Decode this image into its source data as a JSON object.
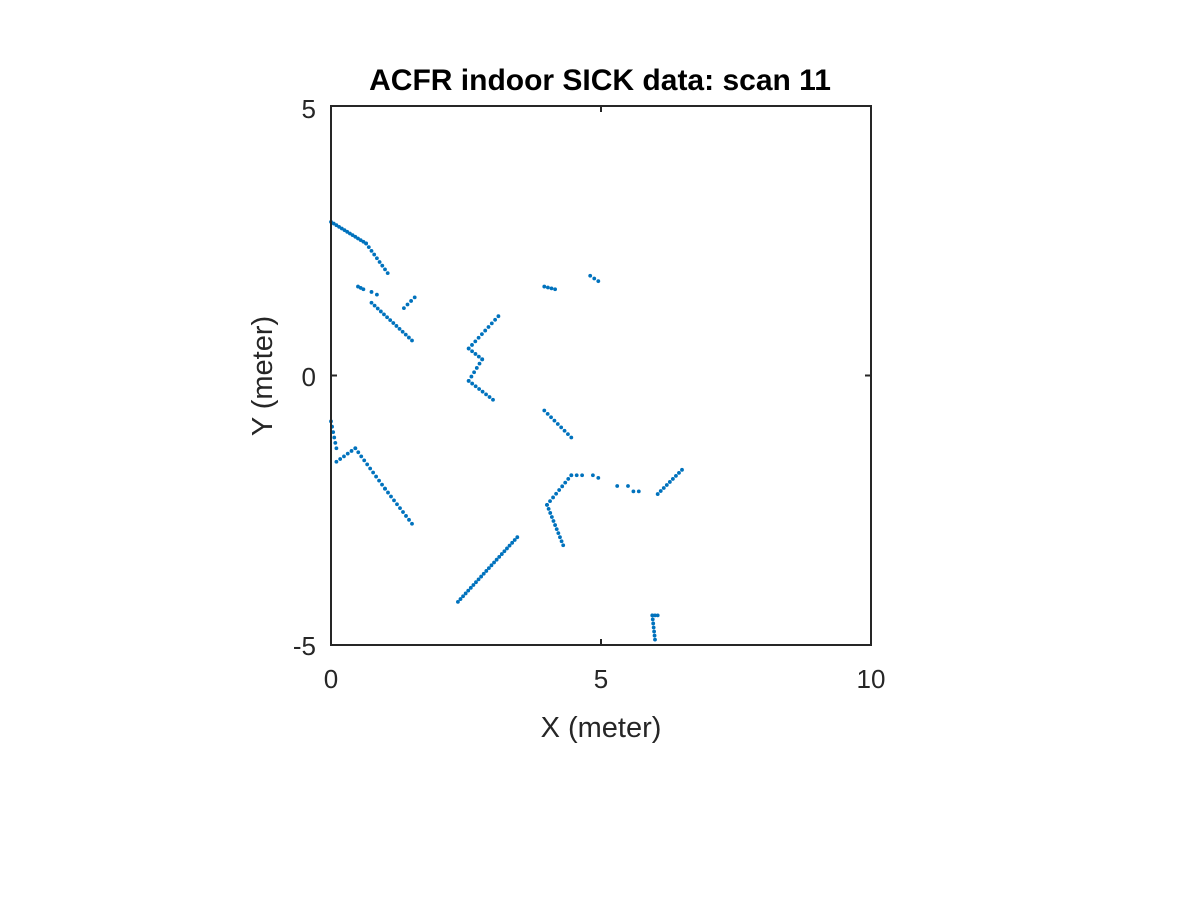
{
  "chart_data": {
    "type": "scatter",
    "title": "ACFR indoor SICK data: scan 11",
    "xlabel": "X (meter)",
    "ylabel": "Y (meter)",
    "xlim": [
      0,
      10
    ],
    "ylim": [
      -5,
      5
    ],
    "xticks": [
      "0",
      "5",
      "10"
    ],
    "yticks": [
      "5",
      "0",
      "-5"
    ],
    "grid": false,
    "marker_color": "#0072BD",
    "segments": [
      {
        "from": [
          0.0,
          2.85
        ],
        "to": [
          0.65,
          2.45
        ],
        "n": 14
      },
      {
        "from": [
          0.65,
          2.45
        ],
        "to": [
          1.05,
          1.9
        ],
        "n": 9
      },
      {
        "from": [
          0.5,
          1.65
        ],
        "to": [
          0.6,
          1.6
        ],
        "n": 3
      },
      {
        "from": [
          0.75,
          1.55
        ],
        "to": [
          0.85,
          1.5
        ],
        "n": 2
      },
      {
        "from": [
          0.75,
          1.35
        ],
        "to": [
          1.5,
          0.65
        ],
        "n": 14
      },
      {
        "from": [
          1.35,
          1.25
        ],
        "to": [
          1.55,
          1.45
        ],
        "n": 4
      },
      {
        "from": [
          2.55,
          0.5
        ],
        "to": [
          3.1,
          1.1
        ],
        "n": 10
      },
      {
        "from": [
          2.55,
          0.5
        ],
        "to": [
          2.8,
          0.3
        ],
        "n": 5
      },
      {
        "from": [
          2.8,
          0.3
        ],
        "to": [
          2.55,
          -0.1
        ],
        "n": 6
      },
      {
        "from": [
          2.55,
          -0.1
        ],
        "to": [
          3.0,
          -0.45
        ],
        "n": 8
      },
      {
        "from": [
          3.95,
          1.65
        ],
        "to": [
          4.15,
          1.6
        ],
        "n": 4
      },
      {
        "from": [
          4.8,
          1.85
        ],
        "to": [
          4.95,
          1.75
        ],
        "n": 3
      },
      {
        "from": [
          3.95,
          -0.65
        ],
        "to": [
          4.45,
          -1.15
        ],
        "n": 9
      },
      {
        "from": [
          0.0,
          -0.85
        ],
        "to": [
          0.1,
          -1.35
        ],
        "n": 6
      },
      {
        "from": [
          0.1,
          -1.6
        ],
        "to": [
          0.45,
          -1.35
        ],
        "n": 6
      },
      {
        "from": [
          0.45,
          -1.35
        ],
        "to": [
          1.0,
          -2.1
        ],
        "n": 11
      },
      {
        "from": [
          1.0,
          -2.1
        ],
        "to": [
          1.5,
          -2.75
        ],
        "n": 10
      },
      {
        "from": [
          2.35,
          -4.2
        ],
        "to": [
          3.45,
          -3.0
        ],
        "n": 24
      },
      {
        "from": [
          4.0,
          -2.4
        ],
        "to": [
          4.45,
          -1.85
        ],
        "n": 9
      },
      {
        "from": [
          4.0,
          -2.4
        ],
        "to": [
          4.3,
          -3.15
        ],
        "n": 11
      },
      {
        "from": [
          4.45,
          -1.85
        ],
        "to": [
          4.65,
          -1.85
        ],
        "n": 3
      },
      {
        "from": [
          4.85,
          -1.85
        ],
        "to": [
          4.95,
          -1.9
        ],
        "n": 2
      },
      {
        "from": [
          5.3,
          -2.05
        ],
        "to": [
          5.5,
          -2.05
        ],
        "n": 2
      },
      {
        "from": [
          5.6,
          -2.15
        ],
        "to": [
          5.7,
          -2.15
        ],
        "n": 2
      },
      {
        "from": [
          6.05,
          -2.2
        ],
        "to": [
          6.5,
          -1.75
        ],
        "n": 9
      },
      {
        "from": [
          5.95,
          -4.45
        ],
        "to": [
          6.05,
          -4.45
        ],
        "n": 3
      },
      {
        "from": [
          5.95,
          -4.45
        ],
        "to": [
          6.0,
          -4.9
        ],
        "n": 7
      }
    ]
  }
}
